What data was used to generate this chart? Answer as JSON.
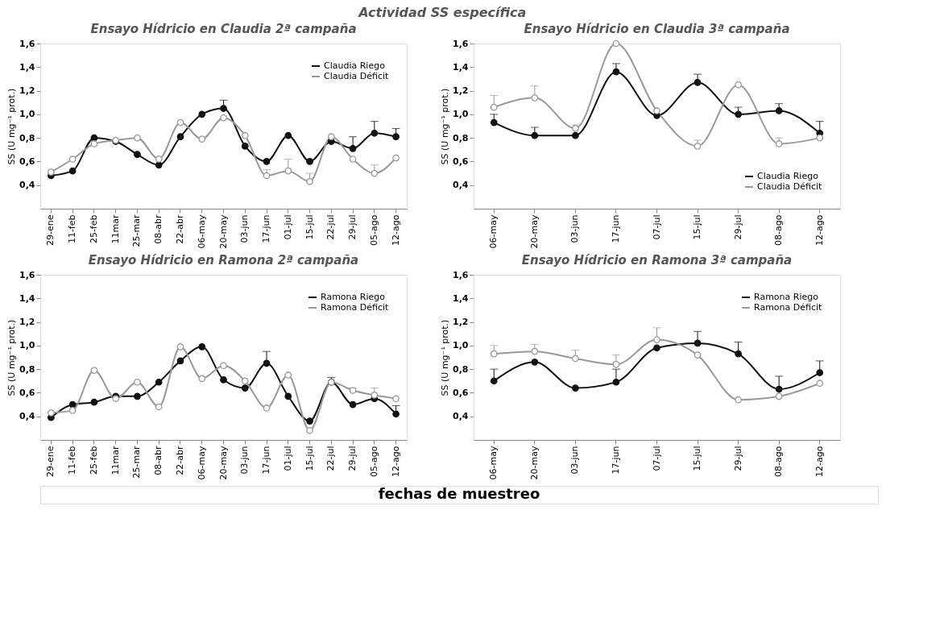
{
  "chart_data": [
    {
      "type": "line",
      "title": "Ensayo Hídricio en Claudia 2ª campaña",
      "ylabel": "SS (U mg⁻¹ prot.)",
      "annotations": [
        "Actividad SS específica"
      ],
      "categories": [
        "29-ene",
        "11-feb",
        "25-feb",
        "11mar",
        "25-mar",
        "08-abr",
        "22-abr",
        "06-may",
        "20-may",
        "03-jun",
        "17-jun",
        "01-jul",
        "15-jul",
        "22-jul",
        "29-jul",
        "05-ago",
        "12-ago"
      ],
      "series": [
        {
          "name": "Claudia Riego",
          "color": "#111111",
          "values": [
            0.48,
            0.52,
            0.8,
            0.77,
            0.66,
            0.57,
            0.81,
            1.0,
            1.05,
            0.73,
            0.6,
            0.82,
            0.6,
            0.77,
            0.71,
            0.84,
            0.81
          ],
          "errors": [
            null,
            null,
            null,
            null,
            null,
            null,
            null,
            null,
            [
              1.05,
              1.12
            ],
            null,
            null,
            null,
            null,
            null,
            [
              0.71,
              0.81
            ],
            [
              0.84,
              0.94
            ],
            [
              0.81,
              0.88
            ]
          ]
        },
        {
          "name": "Claudia Déficit",
          "color": "#999999",
          "values": [
            0.51,
            0.62,
            0.75,
            0.78,
            0.8,
            0.62,
            0.93,
            0.79,
            0.97,
            0.82,
            0.48,
            0.52,
            0.43,
            0.81,
            0.62,
            0.5,
            0.63
          ],
          "errors": [
            null,
            null,
            null,
            null,
            null,
            null,
            null,
            null,
            null,
            null,
            [
              0.48,
              0.53
            ],
            [
              0.52,
              0.62
            ],
            [
              0.43,
              0.5
            ],
            null,
            null,
            [
              0.5,
              0.57
            ],
            null
          ]
        }
      ],
      "ylim": [
        0.2,
        1.6
      ],
      "yticks": [
        {
          "value": 0.4,
          "label": "0,4"
        },
        {
          "value": 0.6,
          "label": "0,6"
        },
        {
          "value": 0.8,
          "label": "0,8"
        },
        {
          "value": 1.0,
          "label": "1,0"
        },
        {
          "value": 1.2,
          "label": "1,2"
        },
        {
          "value": 1.4,
          "label": "1,4"
        },
        {
          "value": 1.6,
          "label": "1,6"
        }
      ],
      "legend": "top right",
      "marker": "circle",
      "grid": false
    },
    {
      "type": "line",
      "title": "Ensayo Hídricio en Claudia 3ª campaña",
      "ylabel": "SS (U mg⁻¹ prot.)",
      "categories": [
        "06-may",
        "20-may",
        "03-jun",
        "17-jun",
        "07-jul",
        "15-jul",
        "29-jul",
        "08-ago",
        "12-ago"
      ],
      "series": [
        {
          "name": "Claudia Riego",
          "color": "#111111",
          "values": [
            0.93,
            0.82,
            0.82,
            1.36,
            0.99,
            1.27,
            1.0,
            1.03,
            0.84
          ],
          "errors": [
            [
              0.93,
              1.0
            ],
            [
              0.82,
              0.89
            ],
            null,
            [
              1.36,
              1.43
            ],
            null,
            [
              1.27,
              1.34
            ],
            [
              1.0,
              1.06
            ],
            [
              1.03,
              1.09
            ],
            [
              0.84,
              0.94
            ]
          ]
        },
        {
          "name": "Claudia Déficit",
          "color": "#999999",
          "values": [
            1.06,
            1.14,
            0.88,
            1.6,
            1.03,
            0.73,
            1.25,
            0.75,
            0.8
          ],
          "errors": [
            [
              1.06,
              1.16
            ],
            [
              1.14,
              1.24
            ],
            [
              0.88,
              0.91
            ],
            null,
            null,
            [
              0.73,
              0.78
            ],
            null,
            [
              0.75,
              0.8
            ],
            null
          ]
        }
      ],
      "ylim": [
        0.2,
        1.6
      ],
      "yticks": [
        {
          "value": 0.4,
          "label": "0,4"
        },
        {
          "value": 0.6,
          "label": "0,6"
        },
        {
          "value": 0.8,
          "label": "0,8"
        },
        {
          "value": 1.0,
          "label": "1,0"
        },
        {
          "value": 1.2,
          "label": "1,2"
        },
        {
          "value": 1.4,
          "label": "1,4"
        },
        {
          "value": 1.6,
          "label": "1,6"
        }
      ],
      "legend": "bottom right",
      "marker": "circle",
      "grid": false
    },
    {
      "type": "line",
      "title": "Ensayo Hídricio en Ramona 2ª campaña",
      "ylabel": "SS (U mg⁻¹ prot.)",
      "annotations": [
        "fechas de muestreo"
      ],
      "categories": [
        "29-ene",
        "11-feb",
        "25-feb",
        "11mar",
        "25-mar",
        "08-abr",
        "22-abr",
        "06-may",
        "20-may",
        "03-jun",
        "17-jun",
        "01-jul",
        "15-jul",
        "22-jul",
        "29-jul",
        "05-ago",
        "12-ago"
      ],
      "series": [
        {
          "name": "Ramona Riego",
          "color": "#111111",
          "values": [
            0.39,
            0.5,
            0.52,
            0.57,
            0.57,
            0.69,
            0.87,
            0.99,
            0.71,
            0.64,
            0.85,
            0.57,
            0.36,
            0.69,
            0.5,
            0.55,
            0.42
          ],
          "errors": [
            null,
            null,
            null,
            null,
            null,
            null,
            null,
            null,
            null,
            null,
            [
              0.85,
              0.95
            ],
            null,
            null,
            [
              0.69,
              0.73
            ],
            null,
            null,
            [
              0.42,
              0.49
            ]
          ]
        },
        {
          "name": "Ramona Déficit",
          "color": "#999999",
          "values": [
            0.43,
            0.45,
            0.79,
            0.55,
            0.69,
            0.48,
            0.99,
            0.72,
            0.83,
            0.7,
            0.47,
            0.75,
            0.28,
            0.69,
            0.62,
            0.58,
            0.55
          ],
          "errors": [
            null,
            null,
            null,
            null,
            null,
            null,
            null,
            null,
            null,
            null,
            null,
            null,
            null,
            null,
            [
              0.62,
              0.64
            ],
            [
              0.58,
              0.64
            ],
            null
          ]
        }
      ],
      "ylim": [
        0.2,
        1.6
      ],
      "yticks": [
        {
          "value": 0.4,
          "label": "0,4"
        },
        {
          "value": 0.6,
          "label": "0,6"
        },
        {
          "value": 0.8,
          "label": "0,8"
        },
        {
          "value": 1.0,
          "label": "1,0"
        },
        {
          "value": 1.2,
          "label": "1,2"
        },
        {
          "value": 1.4,
          "label": "1,4"
        },
        {
          "value": 1.6,
          "label": "1,6"
        }
      ],
      "legend": "top right",
      "marker": "circle",
      "grid": false
    },
    {
      "type": "line",
      "title": "Ensayo Hídricio en Ramona 3ª campaña",
      "ylabel": "SS (U mg⁻¹ prot.)",
      "categories": [
        "06-may",
        "20-may",
        "03-jun",
        "17-jun",
        "07-jul",
        "15-jul",
        "29-jul",
        "08-ago",
        "12-ago"
      ],
      "series": [
        {
          "name": "Ramona Riego",
          "color": "#111111",
          "values": [
            0.7,
            0.86,
            0.64,
            0.69,
            0.98,
            1.02,
            0.93,
            0.63,
            0.77
          ],
          "errors": [
            [
              0.7,
              0.8
            ],
            null,
            null,
            [
              0.69,
              0.8
            ],
            null,
            [
              1.02,
              1.12
            ],
            [
              0.93,
              1.03
            ],
            [
              0.63,
              0.74
            ],
            [
              0.77,
              0.87
            ]
          ]
        },
        {
          "name": "Ramona Déficit",
          "color": "#999999",
          "values": [
            0.93,
            0.95,
            0.89,
            0.84,
            1.05,
            0.92,
            0.54,
            0.57,
            0.68
          ],
          "errors": [
            [
              0.93,
              1.0
            ],
            [
              0.95,
              1.01
            ],
            [
              0.89,
              0.96
            ],
            [
              0.84,
              0.92
            ],
            [
              1.05,
              1.15
            ],
            null,
            null,
            null,
            null
          ]
        }
      ],
      "ylim": [
        0.2,
        1.6
      ],
      "yticks": [
        {
          "value": 0.4,
          "label": "0,4"
        },
        {
          "value": 0.6,
          "label": "0,6"
        },
        {
          "value": 0.8,
          "label": "0,8"
        },
        {
          "value": 1.0,
          "label": "1,0"
        },
        {
          "value": 1.2,
          "label": "1,2"
        },
        {
          "value": 1.4,
          "label": "1,4"
        },
        {
          "value": 1.6,
          "label": "1,6"
        }
      ],
      "legend": "top right",
      "marker": "circle",
      "grid": false
    }
  ]
}
